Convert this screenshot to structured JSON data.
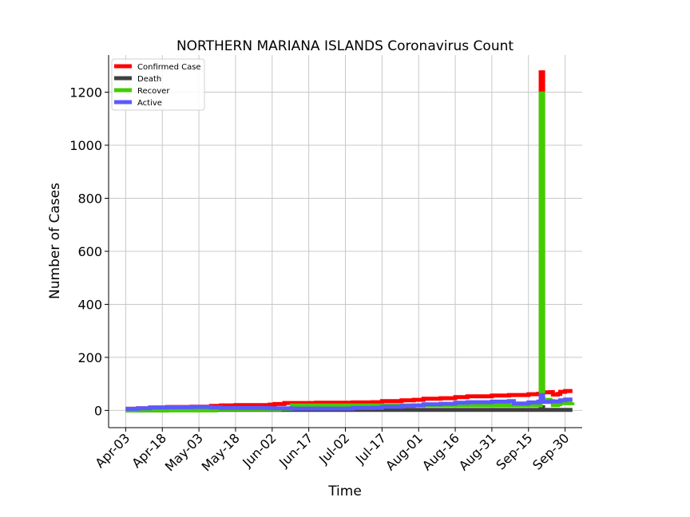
{
  "chart_data": {
    "type": "line",
    "title": "NORTHERN MARIANA ISLANDS Coronavirus Count",
    "xlabel": "Time",
    "ylabel": "Number of Cases",
    "x_ticks": [
      "Apr-03",
      "Apr-18",
      "May-03",
      "May-18",
      "Jun-02",
      "Jun-17",
      "Jul-02",
      "Jul-17",
      "Aug-01",
      "Aug-16",
      "Aug-31",
      "Sep-15",
      "Sep-30"
    ],
    "y_ticks": [
      0,
      200,
      400,
      600,
      800,
      1000,
      1200
    ],
    "ylim": [
      -65,
      1340
    ],
    "xlim": [
      "Mar-27",
      "Oct-07"
    ],
    "grid": true,
    "legend_position": "upper-left",
    "series": [
      {
        "name": "Confirmed Case",
        "color": "#ff0000",
        "points": [
          [
            "Apr-03",
            6
          ],
          [
            "Apr-08",
            8
          ],
          [
            "Apr-13",
            11
          ],
          [
            "Apr-20",
            13
          ],
          [
            "Apr-30",
            14
          ],
          [
            "May-08",
            17
          ],
          [
            "May-12",
            19
          ],
          [
            "May-18",
            20
          ],
          [
            "Jun-01",
            22
          ],
          [
            "Jun-03",
            24
          ],
          [
            "Jun-07",
            28
          ],
          [
            "Jun-20",
            29
          ],
          [
            "Jul-05",
            30
          ],
          [
            "Jul-13",
            31
          ],
          [
            "Jul-17",
            35
          ],
          [
            "Jul-25",
            38
          ],
          [
            "Jul-30",
            40
          ],
          [
            "Aug-03",
            44
          ],
          [
            "Aug-10",
            46
          ],
          [
            "Aug-16",
            50
          ],
          [
            "Aug-21",
            53
          ],
          [
            "Aug-31",
            56
          ],
          [
            "Sep-07",
            58
          ],
          [
            "Sep-15",
            61
          ],
          [
            "Sep-19",
            63
          ],
          [
            "Sep-20",
            1275
          ],
          [
            "Sep-21",
            68
          ],
          [
            "Sep-24",
            69
          ],
          [
            "Sep-25",
            60
          ],
          [
            "Sep-27",
            62
          ],
          [
            "Sep-28",
            70
          ],
          [
            "Sep-30",
            73
          ],
          [
            "Oct-03",
            73
          ]
        ]
      },
      {
        "name": "Death",
        "color": "#404040",
        "points": [
          [
            "Apr-03",
            0
          ],
          [
            "Apr-20",
            2
          ],
          [
            "Jul-10",
            2
          ],
          [
            "Sep-19",
            2
          ],
          [
            "Sep-20",
            12
          ],
          [
            "Sep-21",
            2
          ],
          [
            "Oct-03",
            2
          ]
        ]
      },
      {
        "name": "Recover",
        "color": "#44cc00",
        "points": [
          [
            "Apr-03",
            0
          ],
          [
            "May-10",
            4
          ],
          [
            "Jun-05",
            6
          ],
          [
            "Jun-10",
            19
          ],
          [
            "Jul-10",
            19
          ],
          [
            "Aug-01",
            19
          ],
          [
            "Sep-08",
            19
          ],
          [
            "Sep-19",
            19
          ],
          [
            "Sep-20",
            1195
          ],
          [
            "Sep-21",
            40
          ],
          [
            "Sep-24",
            35
          ],
          [
            "Sep-25",
            20
          ],
          [
            "Sep-27",
            23
          ],
          [
            "Sep-28",
            27
          ],
          [
            "Oct-03",
            30
          ]
        ]
      },
      {
        "name": "Active",
        "color": "#5a5aff",
        "points": [
          [
            "Apr-03",
            6
          ],
          [
            "Apr-08",
            8
          ],
          [
            "Apr-13",
            11
          ],
          [
            "Apr-20",
            12
          ],
          [
            "Apr-30",
            13
          ],
          [
            "May-08",
            11
          ],
          [
            "May-12",
            9
          ],
          [
            "Jun-01",
            8
          ],
          [
            "Jun-10",
            7
          ],
          [
            "Jul-05",
            9
          ],
          [
            "Jul-13",
            10
          ],
          [
            "Jul-17",
            14
          ],
          [
            "Jul-25",
            17
          ],
          [
            "Jul-30",
            19
          ],
          [
            "Aug-03",
            23
          ],
          [
            "Aug-10",
            25
          ],
          [
            "Aug-16",
            29
          ],
          [
            "Aug-21",
            31
          ],
          [
            "Aug-31",
            33
          ],
          [
            "Sep-07",
            35
          ],
          [
            "Sep-09",
            26
          ],
          [
            "Sep-15",
            30
          ],
          [
            "Sep-19",
            33
          ],
          [
            "Sep-20",
            58
          ],
          [
            "Sep-21",
            32
          ],
          [
            "Sep-24",
            34
          ],
          [
            "Sep-28",
            38
          ],
          [
            "Sep-30",
            41
          ],
          [
            "Oct-03",
            41
          ]
        ]
      }
    ]
  }
}
